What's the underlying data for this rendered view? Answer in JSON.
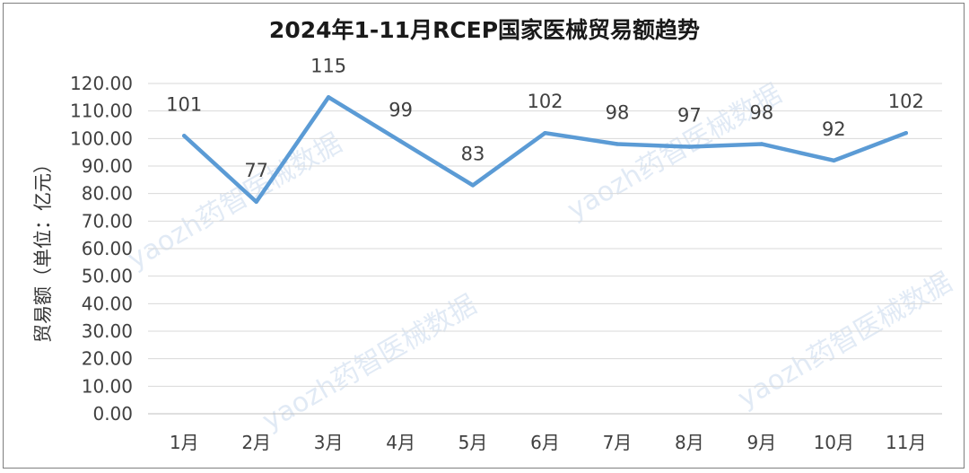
{
  "chart_data": {
    "type": "line",
    "title": "2024年1-11月RCEP国家医械贸易额趋势",
    "xlabel": "",
    "ylabel": "贸易额（单位：亿元）",
    "categories": [
      "1月",
      "2月",
      "3月",
      "4月",
      "5月",
      "6月",
      "7月",
      "8月",
      "9月",
      "10月",
      "11月"
    ],
    "series": [
      {
        "values": [
          101,
          77,
          115,
          99,
          83,
          102,
          98,
          97,
          98,
          92,
          102
        ],
        "labels": [
          "101",
          "77",
          "115",
          "99",
          "83",
          "102",
          "98",
          "97",
          "98",
          "92",
          "102"
        ]
      }
    ],
    "ylim": [
      0,
      120
    ],
    "ytick_step": 10,
    "ytick_labels": [
      "0.00",
      "10.00",
      "20.00",
      "30.00",
      "40.00",
      "50.00",
      "60.00",
      "70.00",
      "80.00",
      "90.00",
      "100.00",
      "110.00",
      "120.00"
    ],
    "grid": true,
    "legend": "none",
    "line_color": "#5b9bd5",
    "watermark": "yaozh药智医械数据"
  }
}
